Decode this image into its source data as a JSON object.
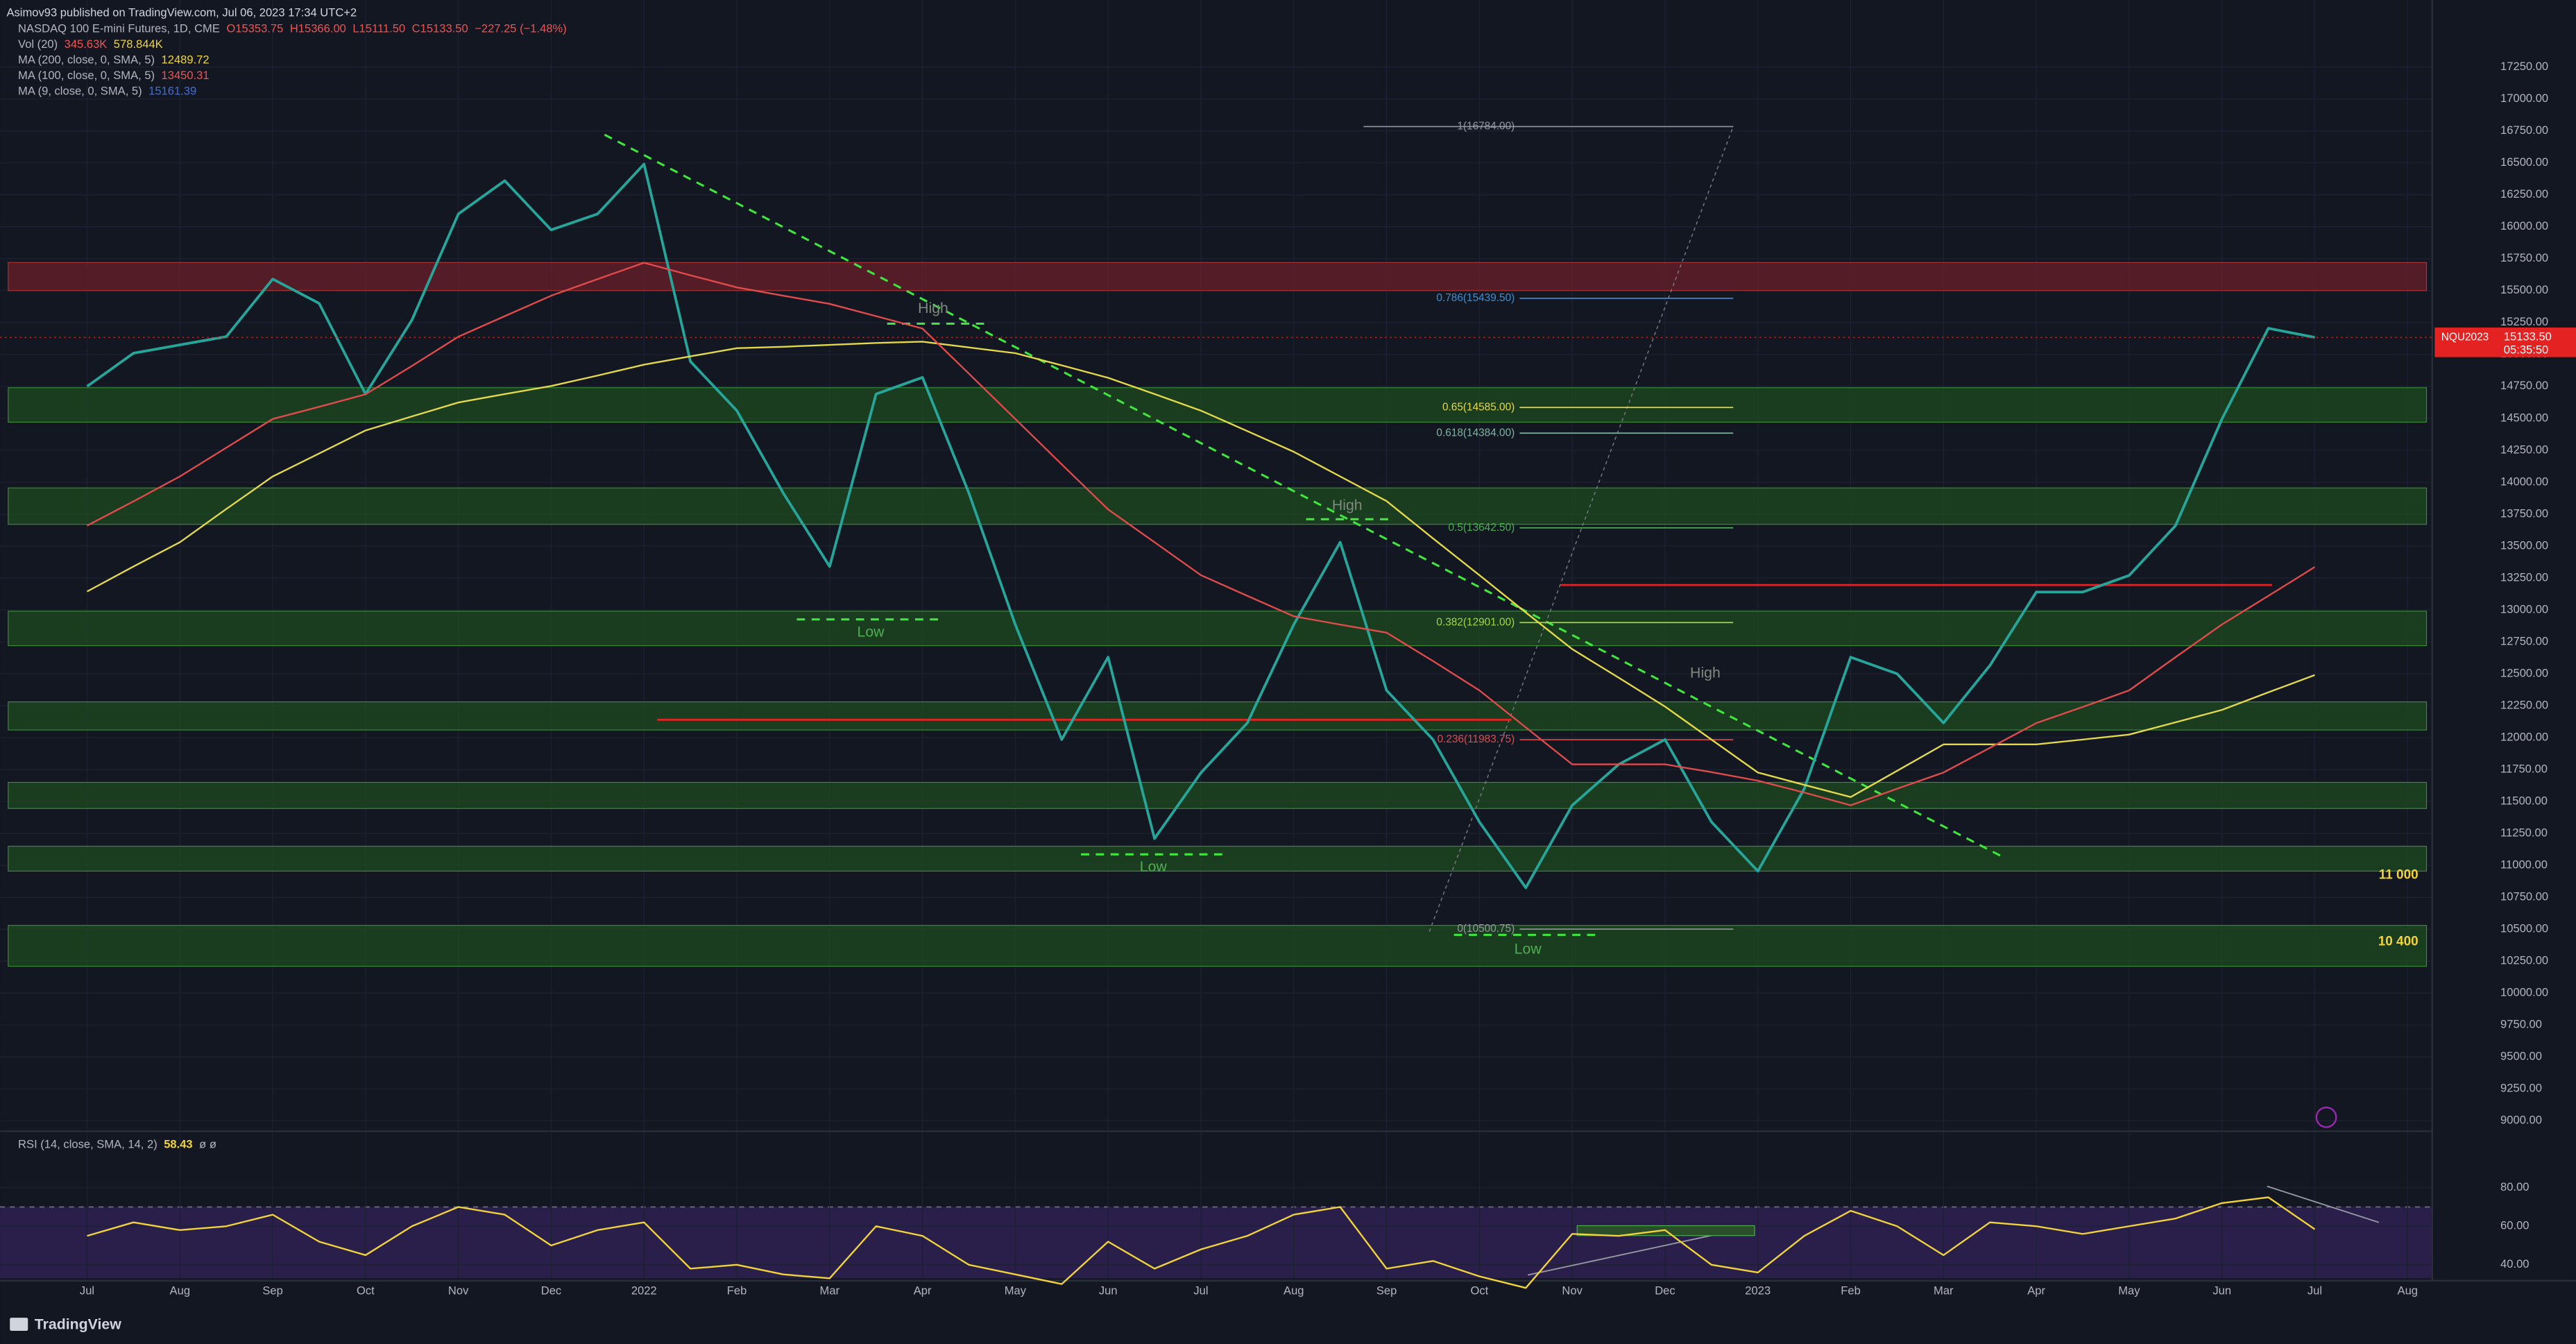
{
  "header": {
    "publisher": "Asimov93 published on TradingView.com, Jul 06, 2023 17:34 UTC+2",
    "rows": [
      {
        "name": "NASDAQ 100 E-mini Futures, 1D, CME",
        "values": [
          "O15353.75",
          "H15366.00",
          "L15111.50",
          "C15133.50",
          "−227.25 (−1.48%)"
        ]
      },
      {
        "name": "Vol (20)",
        "values": [
          "345.63K",
          "578.844K"
        ]
      },
      {
        "name": "MA (200, close, 0, SMA, 5)",
        "values": [
          "12489.72"
        ]
      },
      {
        "name": "MA (100, close, 0, SMA, 5)",
        "values": [
          "13450.31"
        ]
      },
      {
        "name": "MA (9, close, 0, SMA, 5)",
        "values": [
          "15161.39"
        ]
      }
    ]
  },
  "chart_data": {
    "type": "line",
    "categories": [
      "Jul",
      null,
      "Aug",
      null,
      "Sep",
      null,
      "Oct",
      null,
      "Nov",
      null,
      "Dec",
      null,
      "2022",
      null,
      "Feb",
      null,
      "Mar",
      null,
      "Apr",
      null,
      "May",
      null,
      "Jun",
      null,
      "Jul",
      null,
      "Aug",
      null,
      "Sep",
      null,
      "Oct",
      null,
      "Nov",
      null,
      "Dec",
      null,
      "2023",
      null,
      "Feb",
      null,
      "Mar",
      null,
      "Apr",
      null,
      "May",
      null,
      "Jun",
      null,
      "Jul",
      null,
      "Aug"
    ],
    "series": [
      {
        "name": "NASDAQ 100 E-mini Futures",
        "color": "#26a69a",
        "values": [
          14750,
          15010,
          15075,
          15140,
          15590,
          15400,
          14690,
          15270,
          16100,
          16360,
          15975,
          16100,
          16490,
          14945,
          14560,
          13915,
          13340,
          14690,
          14820,
          13915,
          12885,
          11985,
          12630,
          11210,
          11725,
          12115,
          12885,
          13530,
          12370,
          11985,
          11340,
          10825,
          11470,
          11790,
          11985,
          11340,
          10955,
          11600,
          12630,
          12500,
          12115,
          12565,
          13140,
          13140,
          13270,
          13660,
          14495,
          15205,
          15133.5,
          null,
          null
        ]
      },
      {
        "name": "MA (200, close, 0, SMA, 5)",
        "color": "#e3d94a",
        "values": [
          13144,
          13340,
          13530,
          13790,
          14045,
          14225,
          14405,
          14515,
          14624,
          14690,
          14753,
          14835,
          14920,
          14985,
          15049,
          15060,
          15075,
          15090,
          15100,
          15055,
          15010,
          14915,
          14817,
          14690,
          14560,
          14400,
          14238,
          14045,
          13852,
          13560,
          13272,
          12980,
          12693,
          12470,
          12243,
          11985,
          11727,
          11630,
          11535,
          11740,
          11947,
          11947,
          11947,
          11985,
          12024,
          12120,
          12217,
          12355,
          12490,
          null,
          null
        ]
      },
      {
        "name": "MA (100, close, 0, SMA, 5)",
        "color": "#e04b4b",
        "values": [
          13660,
          13850,
          14045,
          14270,
          14495,
          14590,
          14688,
          14910,
          15139,
          15300,
          15460,
          15590,
          15718,
          15620,
          15525,
          15460,
          15396,
          15300,
          15203,
          14850,
          14495,
          14140,
          13787,
          13530,
          13272,
          13110,
          12950,
          12885,
          12822,
          12600,
          12370,
          12080,
          11791,
          11791,
          11791,
          11730,
          11663,
          11570,
          11470,
          11600,
          11727,
          11920,
          12114,
          12240,
          12370,
          12630,
          12886,
          13110,
          13336,
          null,
          null
        ]
      },
      {
        "name": "RSI (14, close, SMA, 14, 2)",
        "color": "#f2d43a",
        "axis": "y2",
        "values": [
          55,
          62,
          58,
          60,
          66,
          52,
          45,
          60,
          70,
          66,
          50,
          58,
          62,
          38,
          40,
          35,
          33,
          60,
          55,
          40,
          35,
          30,
          52,
          38,
          48,
          55,
          66,
          70,
          38,
          42,
          34,
          28,
          56,
          55,
          58,
          40,
          36,
          55,
          68,
          60,
          45,
          62,
          60,
          56,
          60,
          64,
          72,
          75,
          58.43,
          null,
          null
        ]
      }
    ],
    "rsi_legend": {
      "name": "RSI (14, close, SMA, 14, 2)",
      "value": "58.43",
      "extra": "ø ø"
    },
    "ylim": [
      8925,
      17775
    ],
    "yticks": [
      {
        "value": 9000,
        "label": "9000.00"
      },
      {
        "value": 9250,
        "label": "9250.00"
      },
      {
        "value": 9500,
        "label": "9500.00"
      },
      {
        "value": 9750,
        "label": "9750.00"
      },
      {
        "value": 10000,
        "label": "10000.00"
      },
      {
        "value": 10250,
        "label": "10250.00"
      },
      {
        "value": 10500,
        "label": "10500.00"
      },
      {
        "value": 10750,
        "label": "10750.00"
      },
      {
        "value": 11000,
        "label": "11000.00"
      },
      {
        "value": 11250,
        "label": "11250.00"
      },
      {
        "value": 11500,
        "label": "11500.00"
      },
      {
        "value": 11750,
        "label": "11750.00"
      },
      {
        "value": 12000,
        "label": "12000.00"
      },
      {
        "value": 12250,
        "label": "12250.00"
      },
      {
        "value": 12500,
        "label": "12500.00"
      },
      {
        "value": 12750,
        "label": "12750.00"
      },
      {
        "value": 13000,
        "label": "13000.00"
      },
      {
        "value": 13250,
        "label": "13250.00"
      },
      {
        "value": 13500,
        "label": "13500.00"
      },
      {
        "value": 13750,
        "label": "13750.00"
      },
      {
        "value": 14000,
        "label": "14000.00"
      },
      {
        "value": 14250,
        "label": "14250.00"
      },
      {
        "value": 14500,
        "label": "14500.00"
      },
      {
        "value": 14750,
        "label": "14750.00"
      },
      {
        "value": 15000,
        "label": "15000.00"
      },
      {
        "value": 15250,
        "label": "15250.00"
      },
      {
        "value": 15500,
        "label": "15500.00"
      },
      {
        "value": 15750,
        "label": "15750.00"
      },
      {
        "value": 16000,
        "label": "16000.00"
      },
      {
        "value": 16250,
        "label": "16250.00"
      },
      {
        "value": 16500,
        "label": "16500.00"
      },
      {
        "value": 16750,
        "label": "16750.00"
      },
      {
        "value": 17000,
        "label": "17000.00"
      },
      {
        "value": 17250,
        "label": "17250.00"
      }
    ],
    "y2lim": [
      33,
      108
    ],
    "y2ticks": [
      {
        "value": 40,
        "label": "40.00"
      },
      {
        "value": 60,
        "label": "60.00"
      },
      {
        "value": 80,
        "label": "80.00"
      }
    ],
    "rsi_band": [
      33,
      70
    ],
    "grid": true,
    "zones": [
      {
        "from": 15500,
        "to": 15720,
        "color": "#6b1f28"
      },
      {
        "from": 14470,
        "to": 14740,
        "color": "#1d4a1f"
      },
      {
        "from": 13670,
        "to": 13955,
        "color": "#1d4a1f"
      },
      {
        "from": 12720,
        "to": 12990,
        "color": "#1d4a1f"
      },
      {
        "from": 12060,
        "to": 12280,
        "color": "#1d4a1f"
      },
      {
        "from": 11445,
        "to": 11650,
        "color": "#1d4a1f"
      },
      {
        "from": 10955,
        "to": 11150,
        "color": "#1d4a1f"
      },
      {
        "from": 10210,
        "to": 10530,
        "color": "#1d4a1f"
      }
    ],
    "zone_labels": [
      {
        "text": "11 000",
        "value": 11000
      },
      {
        "text": "10 400",
        "value": 10400
      }
    ],
    "hlines": [
      {
        "value": 13195,
        "color": "#e52222"
      },
      {
        "value": 12140,
        "color": "#e52222"
      }
    ],
    "fib_levels": [
      {
        "label": "1(16784.00)",
        "value": 16784,
        "color": "#9598a1"
      },
      {
        "label": "0.786(15439.50)",
        "value": 15439.5,
        "color": "#3d8fd6"
      },
      {
        "label": "0.65(14585.00)",
        "value": 14585,
        "color": "#e3d94a"
      },
      {
        "label": "0.618(14384.00)",
        "value": 14384,
        "color": "#7fb5a0"
      },
      {
        "label": "0.5(13642.50)",
        "value": 13642.5,
        "color": "#4caf50"
      },
      {
        "label": "0.382(12901.00)",
        "value": 12901,
        "color": "#a5d64a"
      },
      {
        "label": "0.236(11983.75)",
        "value": 11983.75,
        "color": "#e04b4b"
      },
      {
        "label": "0(10500.75)",
        "value": 10500.75,
        "color": "#9598a1"
      }
    ],
    "annotations": [
      "High",
      "Low",
      "High",
      "Low",
      "High",
      "Low"
    ],
    "price_tag": {
      "symbol": "NQU2023",
      "price": "15133.50",
      "countdown": "05:35:50",
      "value": 15133.5
    }
  },
  "footer": {
    "brand": "TradingView"
  }
}
